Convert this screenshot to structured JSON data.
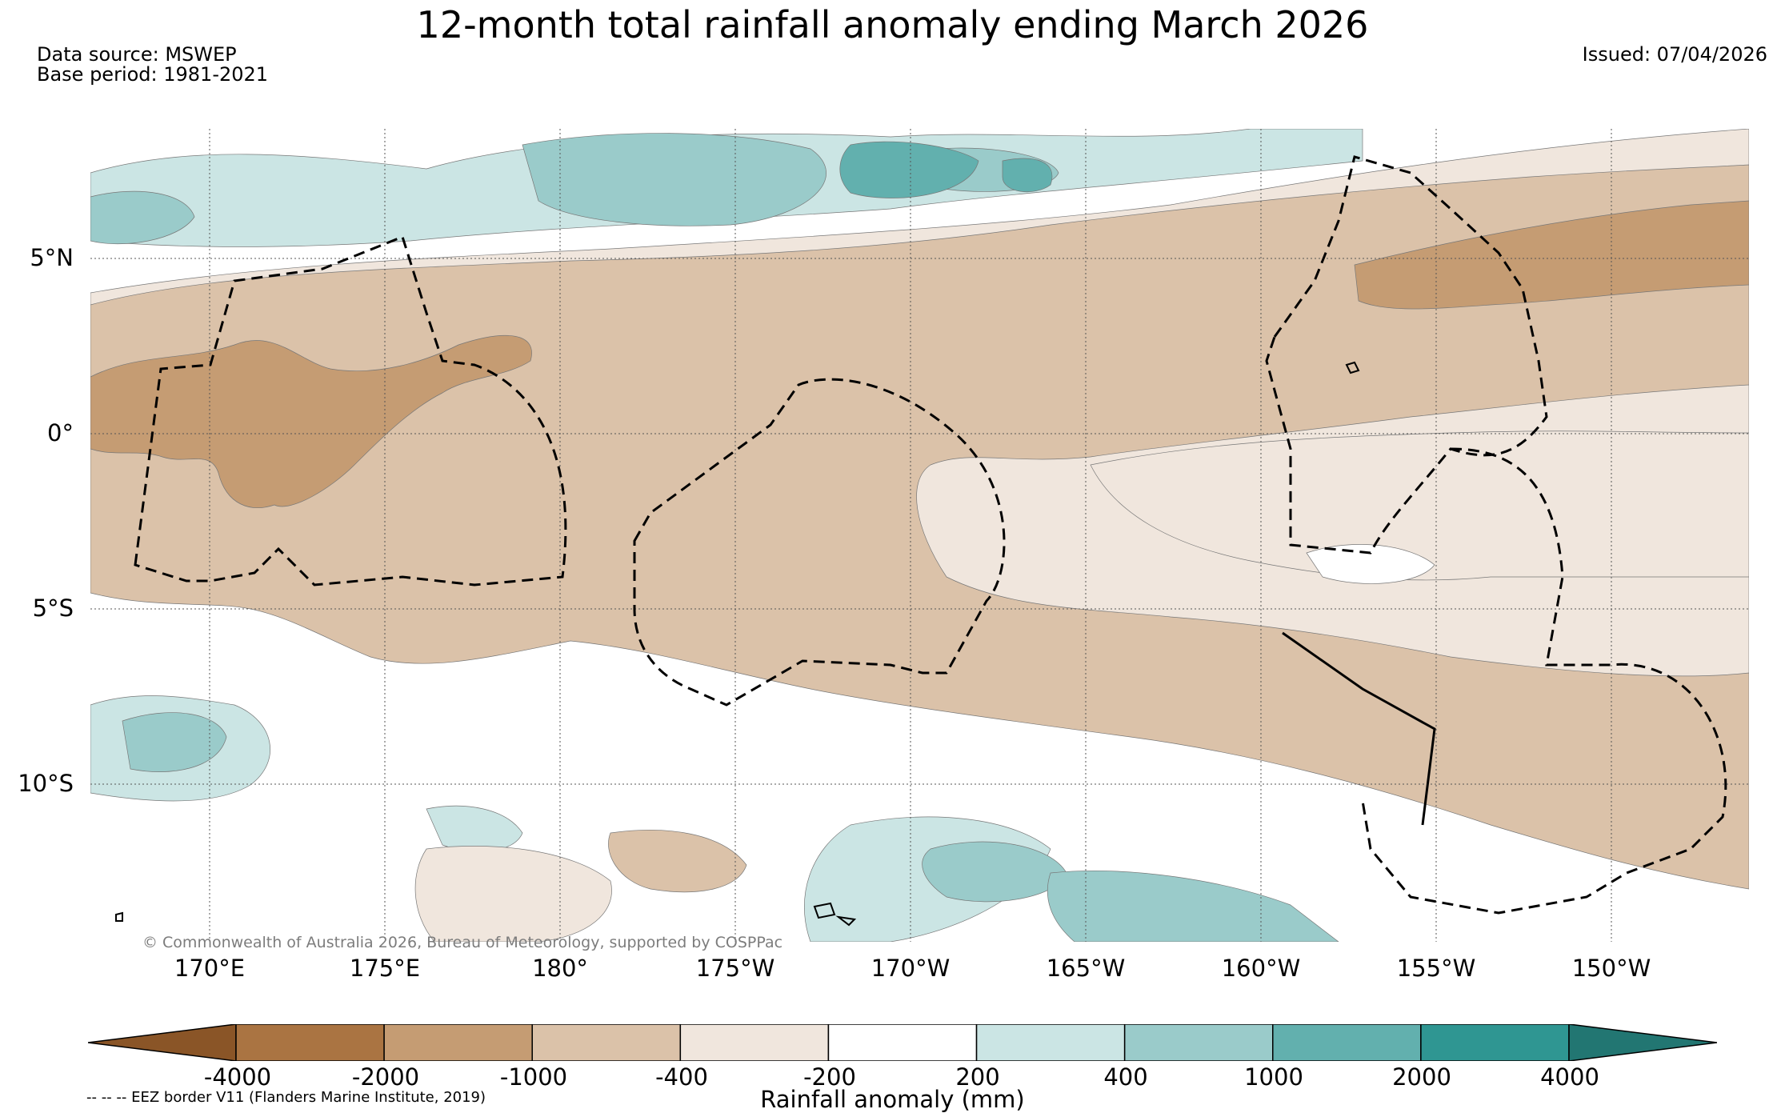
{
  "title": "12-month total rainfall anomaly ending March 2026",
  "source_line": "Data source: MSWEP",
  "base_line": "Base period: 1981-2021",
  "issued_line": "Issued: 07/04/2026",
  "lat_labels": [
    "5°N",
    "0°",
    "5°S",
    "10°S"
  ],
  "lon_labels": [
    "170°E",
    "175°E",
    "180°",
    "175°W",
    "170°W",
    "165°W",
    "160°W",
    "155°W",
    "150°W"
  ],
  "copyright": "© Commonwealth of Australia 2026, Bureau of Meteorology, supported by COSPPac",
  "legend": {
    "title": "Rainfall anomaly (mm)",
    "ticks": [
      "-4000",
      "-2000",
      "-1000",
      "-400",
      "-200",
      "200",
      "400",
      "1000",
      "2000",
      "4000"
    ],
    "colors": [
      "#8a5527",
      "#aa7442",
      "#c59c73",
      "#dbc2a9",
      "#f0e6dd",
      "#ffffff",
      "#cbe5e4",
      "#9acbca",
      "#62b0ae",
      "#2f9692",
      "#227672"
    ]
  },
  "eez_note": "-- -- -- EEZ border V11 (Flanders Marine Institute, 2019)"
}
